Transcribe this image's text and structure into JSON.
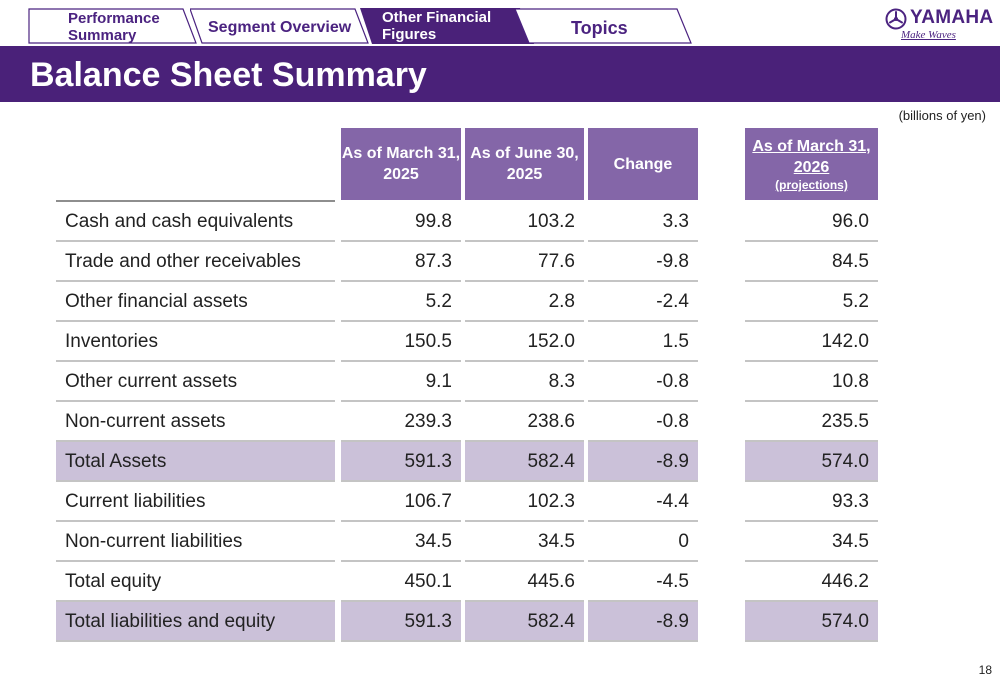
{
  "nav": {
    "tabs": [
      {
        "label": "Performance Summary"
      },
      {
        "label": "Segment Overview"
      },
      {
        "label": "Other Financial Figures"
      },
      {
        "label": "Topics"
      }
    ]
  },
  "logo": {
    "word": "YAMAHA",
    "tagline": "Make Waves"
  },
  "title": "Balance Sheet Summary",
  "units": "(billions of yen)",
  "table": {
    "headers": {
      "col1": "As of March 31, 2025",
      "col2": "As of June 30, 2025",
      "col3": "Change",
      "col4": "As of March 31, 2026",
      "col4_sub": "(projections)"
    },
    "rows": [
      {
        "label": "Cash and cash equivalents",
        "mar2025": "99.8",
        "jun2025": "103.2",
        "change": "3.3",
        "mar2026": "96.0"
      },
      {
        "label": "Trade and other receivables",
        "mar2025": "87.3",
        "jun2025": "77.6",
        "change": "-9.8",
        "mar2026": "84.5"
      },
      {
        "label": "Other financial assets",
        "mar2025": "5.2",
        "jun2025": "2.8",
        "change": "-2.4",
        "mar2026": "5.2"
      },
      {
        "label": "Inventories",
        "mar2025": "150.5",
        "jun2025": "152.0",
        "change": "1.5",
        "mar2026": "142.0"
      },
      {
        "label": "Other current assets",
        "mar2025": "9.1",
        "jun2025": "8.3",
        "change": "-0.8",
        "mar2026": "10.8"
      },
      {
        "label": "Non-current assets",
        "mar2025": "239.3",
        "jun2025": "238.6",
        "change": "-0.8",
        "mar2026": "235.5"
      },
      {
        "label": "Total Assets",
        "mar2025": "591.3",
        "jun2025": "582.4",
        "change": "-8.9",
        "mar2026": "574.0"
      },
      {
        "label": "Current liabilities",
        "mar2025": "106.7",
        "jun2025": "102.3",
        "change": "-4.4",
        "mar2026": "93.3"
      },
      {
        "label": "Non-current liabilities",
        "mar2025": "34.5",
        "jun2025": "34.5",
        "change": "0",
        "mar2026": "34.5"
      },
      {
        "label": "Total equity",
        "mar2025": "450.1",
        "jun2025": "445.6",
        "change": "-4.5",
        "mar2026": "446.2"
      },
      {
        "label": "Total liabilities and equity",
        "mar2025": "591.3",
        "jun2025": "582.4",
        "change": "-8.9",
        "mar2026": "574.0"
      }
    ]
  },
  "page_number": "18",
  "colors": {
    "brand_purple": "#4a2179",
    "header_purple": "#8466a8",
    "total_row_bg": "#cbc1d9"
  }
}
